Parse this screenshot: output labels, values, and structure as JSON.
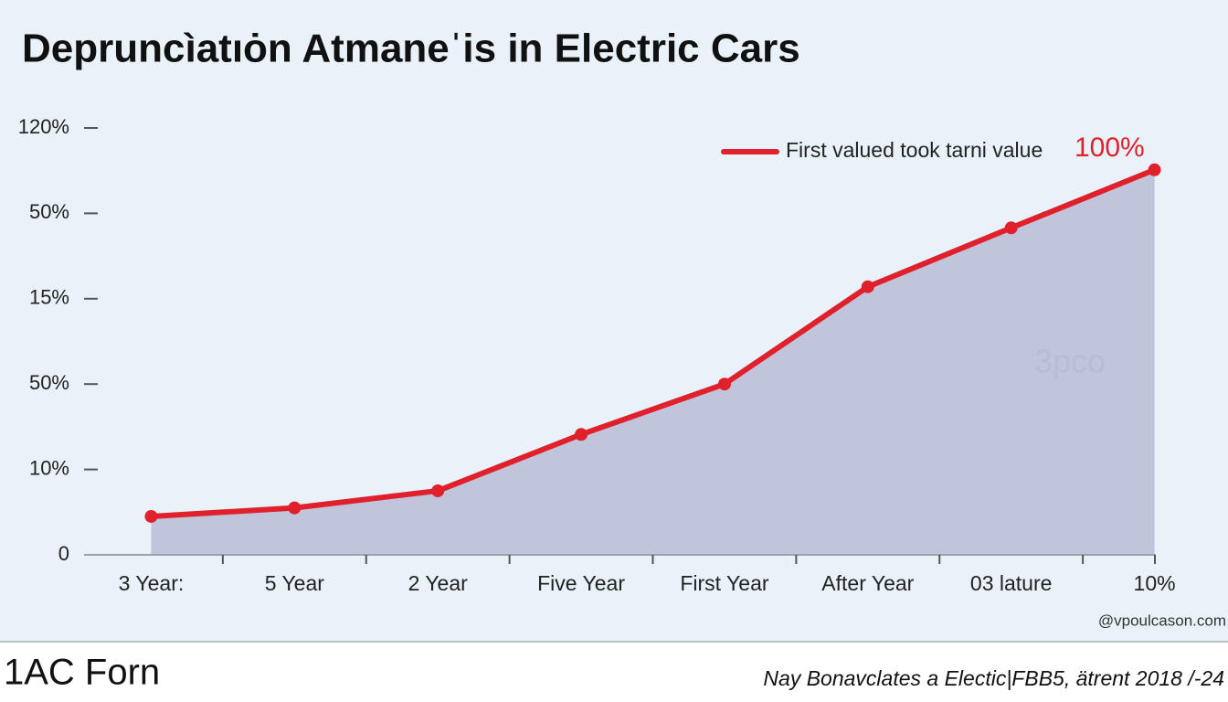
{
  "chart_data": {
    "type": "area-line",
    "title": "Depruncìatıȯn Atmaneˈis in Electric Cars",
    "categories": [
      "3 Year:",
      "5 Year",
      "2 Year",
      "Five Year",
      "First Year",
      "After Year",
      "03 lature",
      "10%"
    ],
    "series": [
      {
        "name": "First valued took tarni value",
        "color": "#e0212c",
        "values": [
          0.45,
          0.55,
          0.75,
          1.41,
          2.0,
          3.14,
          3.83,
          4.51
        ]
      }
    ],
    "area_color": "#bfc2d9",
    "ylim": [
      0,
      5
    ],
    "yticks": [
      {
        "value": 0,
        "label": "0"
      },
      {
        "value": 1,
        "label": "10%"
      },
      {
        "value": 2,
        "label": "50%"
      },
      {
        "value": 3,
        "label": "15%"
      },
      {
        "value": 4,
        "label": "50%"
      },
      {
        "value": 5,
        "label": "120%"
      }
    ],
    "legend": "top-right",
    "annotations": [
      "100%",
      "3pco"
    ],
    "watermark": "@vpoulcason.com",
    "footer_left": "1AC Forn",
    "footer_right": "Nay Bonavclates a Electic|FBB5, ätrent 2018 /-24"
  }
}
